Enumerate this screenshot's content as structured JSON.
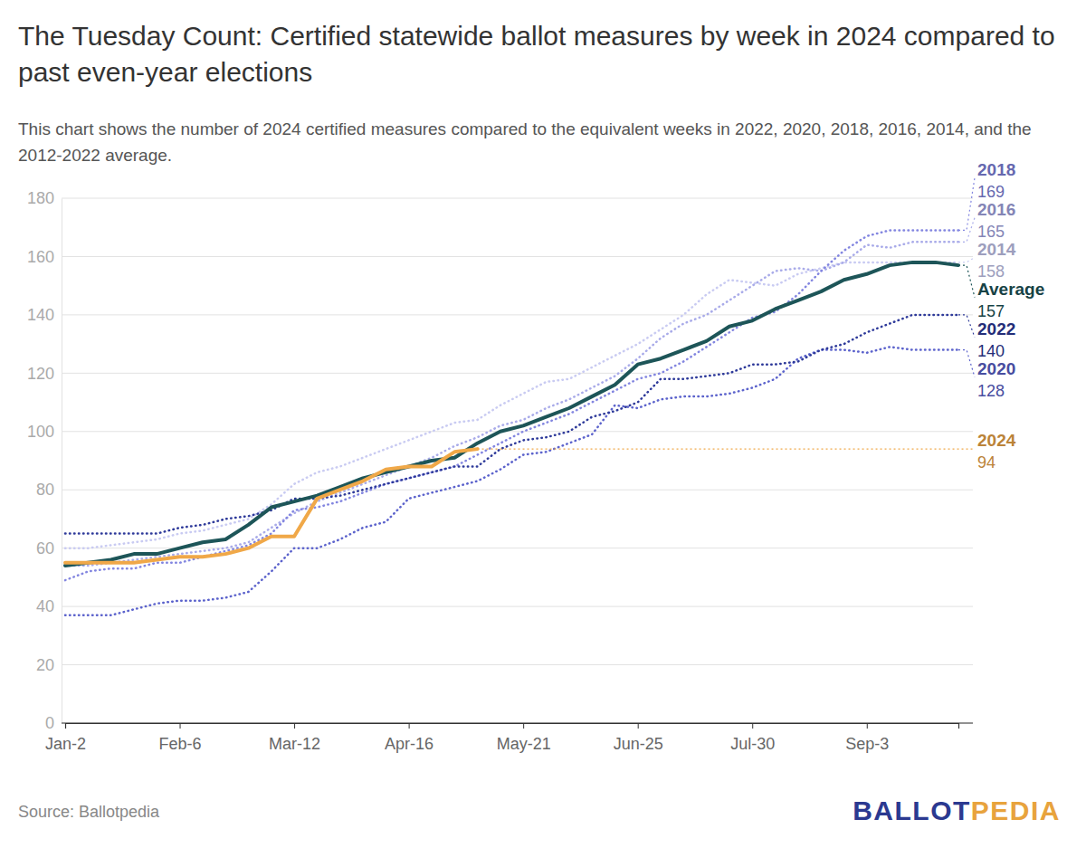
{
  "chart_data": {
    "type": "line",
    "title": "The Tuesday Count: Certified statewide ballot measures by week in 2024 compared to past even-year elections",
    "subtitle": "This chart shows the number of 2024 certified measures compared to the equivalent weeks in 2022, 2020, 2018, 2016, 2014, and the 2012-2022 average.",
    "source": "Source: Ballotpedia",
    "logo": [
      "BALLOT",
      "PEDIA"
    ],
    "categories": [
      "Jan-2",
      null,
      null,
      null,
      null,
      "Feb-6",
      null,
      null,
      null,
      null,
      "Mar-12",
      null,
      null,
      null,
      null,
      "Apr-16",
      null,
      null,
      null,
      null,
      "May-21",
      null,
      null,
      null,
      null,
      "Jun-25",
      null,
      null,
      null,
      null,
      "Jul-30",
      null,
      null,
      null,
      null,
      "Sep-3",
      null,
      null,
      null,
      null
    ],
    "ylim": [
      0,
      180
    ],
    "yticks": [
      0,
      20,
      40,
      60,
      80,
      100,
      120,
      140,
      160,
      180
    ],
    "grid": true,
    "series": [
      {
        "name": "2014",
        "color": "#c9cbf2",
        "line_style": "dotted",
        "values": [
          60,
          60,
          61,
          62,
          63,
          65,
          66,
          68,
          70,
          75,
          82,
          86,
          88,
          91,
          94,
          97,
          100,
          103,
          104,
          109,
          113,
          117,
          118,
          122,
          126,
          130,
          135,
          140,
          147,
          152,
          151,
          150,
          154,
          156,
          158,
          158,
          158,
          158,
          158,
          158
        ]
      },
      {
        "name": "2016",
        "color": "#a9abe9",
        "line_style": "dotted",
        "values": [
          54,
          54,
          55,
          56,
          57,
          58,
          59,
          60,
          62,
          67,
          72,
          76,
          79,
          82,
          85,
          88,
          91,
          95,
          98,
          102,
          104,
          108,
          111,
          115,
          119,
          125,
          132,
          137,
          140,
          145,
          150,
          155,
          156,
          155,
          158,
          164,
          163,
          165,
          165,
          165
        ]
      },
      {
        "name": "2018",
        "color": "#8386e0",
        "line_style": "dotted",
        "values": [
          49,
          52,
          53,
          53,
          55,
          55,
          57,
          59,
          61,
          65,
          73,
          74,
          76,
          79,
          82,
          84,
          86,
          88,
          92,
          96,
          100,
          103,
          106,
          110,
          114,
          118,
          120,
          124,
          129,
          134,
          139,
          141,
          147,
          155,
          162,
          167,
          169,
          169,
          169,
          169
        ]
      },
      {
        "name": "2020",
        "color": "#5c63cc",
        "line_style": "dotted",
        "values": [
          37,
          37,
          37,
          39,
          41,
          42,
          42,
          43,
          45,
          52,
          60,
          60,
          63,
          67,
          69,
          77,
          79,
          81,
          83,
          87,
          92,
          93,
          96,
          99,
          109,
          108,
          111,
          112,
          112,
          113,
          115,
          118,
          125,
          128,
          128,
          127,
          129,
          128,
          128,
          128
        ]
      },
      {
        "name": "2022",
        "color": "#2e3a9a",
        "line_style": "dotted",
        "values": [
          65,
          65,
          65,
          65,
          65,
          67,
          68,
          70,
          71,
          73,
          77,
          77,
          78,
          80,
          82,
          84,
          86,
          88,
          88,
          94,
          97,
          98,
          100,
          105,
          107,
          110,
          118,
          118,
          119,
          120,
          123,
          123,
          124,
          128,
          130,
          134,
          137,
          140,
          140,
          140
        ]
      },
      {
        "name": "Average",
        "color": "#1d5558",
        "line_style": "solid",
        "values": [
          54,
          55,
          56,
          58,
          58,
          60,
          62,
          63,
          68,
          74,
          76,
          78,
          81,
          84,
          86,
          88,
          90,
          91,
          96,
          100,
          102,
          105,
          108,
          112,
          116,
          123,
          125,
          128,
          131,
          136,
          138,
          142,
          145,
          148,
          152,
          154,
          157,
          158,
          158,
          157
        ]
      },
      {
        "name": "2024",
        "color": "#f0a848",
        "line_style": "solid",
        "values": [
          55,
          55,
          55,
          55,
          56,
          57,
          57,
          58,
          60,
          64,
          64,
          77,
          80,
          83,
          87,
          88,
          88,
          93,
          94,
          null,
          null,
          null,
          null,
          null,
          null,
          null,
          null,
          null,
          null,
          null,
          null,
          null,
          null,
          null,
          null,
          null,
          null,
          null,
          null,
          null
        ]
      }
    ]
  }
}
